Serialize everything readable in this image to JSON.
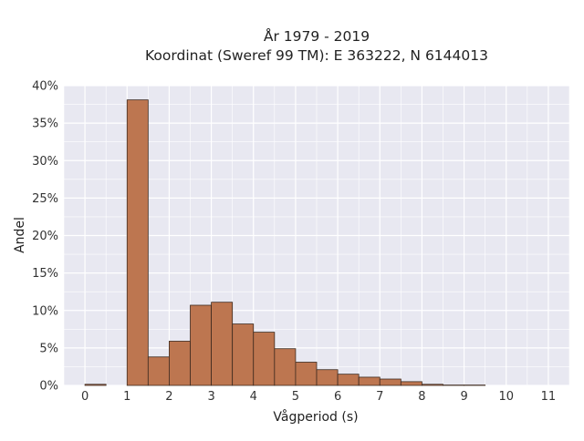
{
  "chart_data": {
    "type": "bar",
    "title_lines": [
      "År 1979 - 2019",
      "Koordinat (Sweref 99 TM): E 363222, N 6144013"
    ],
    "xlabel": "Vågperiod (s)",
    "ylabel": "Andel",
    "bin_width": 0.5,
    "x_ticks": [
      0,
      1,
      2,
      3,
      4,
      5,
      6,
      7,
      8,
      9,
      10,
      11
    ],
    "xlim": [
      -0.5,
      11.5
    ],
    "y_ticks": [
      0,
      5,
      10,
      15,
      20,
      25,
      30,
      35,
      40
    ],
    "y_tick_suffix": "%",
    "ylim": [
      0,
      40
    ],
    "grid": true,
    "bars": [
      {
        "x0": 0.0,
        "value": 0.15
      },
      {
        "x0": 1.0,
        "value": 38.1
      },
      {
        "x0": 1.5,
        "value": 3.8
      },
      {
        "x0": 2.0,
        "value": 5.9
      },
      {
        "x0": 2.5,
        "value": 10.7
      },
      {
        "x0": 3.0,
        "value": 11.1
      },
      {
        "x0": 3.5,
        "value": 8.2
      },
      {
        "x0": 4.0,
        "value": 7.1
      },
      {
        "x0": 4.5,
        "value": 4.9
      },
      {
        "x0": 5.0,
        "value": 3.1
      },
      {
        "x0": 5.5,
        "value": 2.1
      },
      {
        "x0": 6.0,
        "value": 1.5
      },
      {
        "x0": 6.5,
        "value": 1.1
      },
      {
        "x0": 7.0,
        "value": 0.85
      },
      {
        "x0": 7.5,
        "value": 0.5
      },
      {
        "x0": 8.0,
        "value": 0.15
      },
      {
        "x0": 8.5,
        "value": 0.05
      },
      {
        "x0": 9.0,
        "value": 0.05
      }
    ],
    "colors": {
      "bar_fill": "#bd7650",
      "bar_stroke": "#3d2a1f",
      "plot_bg": "#e8e8f1",
      "grid": "#ffffff"
    }
  }
}
